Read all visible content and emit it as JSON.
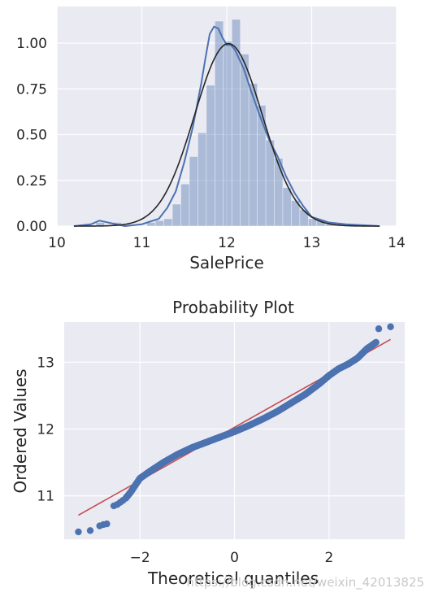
{
  "chart_data": [
    {
      "type": "histogram",
      "title": "",
      "xlabel": "SalePrice",
      "ylabel": "",
      "xlim": [
        10,
        14
      ],
      "ylim": [
        0,
        1.2
      ],
      "xticks": [
        "10",
        "11",
        "12",
        "13",
        "14"
      ],
      "yticks": [
        "0.00",
        "0.25",
        "0.50",
        "0.75",
        "1.00"
      ],
      "bin_edges": [
        10.46,
        10.56,
        10.66,
        10.76,
        10.86,
        10.96,
        11.06,
        11.16,
        11.26,
        11.36,
        11.46,
        11.56,
        11.66,
        11.76,
        11.86,
        11.96,
        12.06,
        12.16,
        12.26,
        12.36,
        12.46,
        12.56,
        12.66,
        12.76,
        12.86,
        12.96,
        13.06,
        13.16,
        13.26,
        13.36,
        13.46,
        13.56
      ],
      "bar_heights": [
        0.02,
        0.0,
        0.02,
        0.0,
        0.0,
        0.0,
        0.02,
        0.03,
        0.04,
        0.12,
        0.23,
        0.38,
        0.51,
        0.77,
        1.12,
        1.01,
        1.13,
        0.94,
        0.78,
        0.66,
        0.47,
        0.37,
        0.21,
        0.14,
        0.09,
        0.04,
        0.03,
        0.01,
        0.01,
        0.0,
        0.01
      ],
      "series": [
        {
          "name": "",
          "style": "kde",
          "color": "#4c72b0",
          "x": [
            10.2,
            10.4,
            10.5,
            10.6,
            10.8,
            11.0,
            11.2,
            11.3,
            11.4,
            11.5,
            11.6,
            11.7,
            11.75,
            11.8,
            11.85,
            11.9,
            11.95,
            12.0,
            12.05,
            12.1,
            12.2,
            12.3,
            12.4,
            12.5,
            12.6,
            12.7,
            12.8,
            12.9,
            13.0,
            13.2,
            13.4,
            13.6,
            13.8
          ],
          "y": [
            0.0,
            0.01,
            0.03,
            0.02,
            0.0,
            0.01,
            0.04,
            0.1,
            0.19,
            0.35,
            0.54,
            0.78,
            0.92,
            1.05,
            1.09,
            1.08,
            1.03,
            0.99,
            0.99,
            0.96,
            0.86,
            0.72,
            0.59,
            0.47,
            0.38,
            0.27,
            0.18,
            0.11,
            0.05,
            0.02,
            0.01,
            0.005,
            0.0
          ]
        },
        {
          "name": "",
          "style": "normal-fit",
          "color": "#262626",
          "mean": 12.02,
          "std": 0.4
        }
      ]
    },
    {
      "type": "scatter",
      "title": "Probability Plot",
      "xlabel": "Theoretical quantiles",
      "ylabel": "Ordered Values",
      "xlim": [
        -3.6,
        3.6
      ],
      "ylim": [
        10.35,
        13.6
      ],
      "xticks": [
        "−2",
        "0",
        "2"
      ],
      "yticks": [
        "11",
        "12",
        "13"
      ],
      "series": [
        {
          "name": "",
          "style": "points",
          "color": "#4c72b0",
          "curve_x": [
            -3.3,
            -3.05,
            -2.75,
            -2.6,
            -2.5,
            -2.35,
            -2.2,
            -2.0,
            -1.8,
            -1.5,
            -1.2,
            -0.9,
            -0.6,
            -0.3,
            0.0,
            0.3,
            0.6,
            0.9,
            1.2,
            1.5,
            1.8,
            2.0,
            2.2,
            2.4,
            2.6,
            2.8,
            3.0
          ],
          "curve_y": [
            10.46,
            10.48,
            10.56,
            10.6,
            10.86,
            10.92,
            11.05,
            11.26,
            11.36,
            11.5,
            11.62,
            11.72,
            11.8,
            11.88,
            11.96,
            12.05,
            12.15,
            12.26,
            12.39,
            12.52,
            12.68,
            12.8,
            12.9,
            12.97,
            13.06,
            13.2,
            13.3
          ],
          "outliers": [
            [
              3.05,
              13.5
            ],
            [
              3.3,
              13.53
            ]
          ]
        },
        {
          "name": "",
          "style": "fit-line",
          "color": "#c44e52",
          "x": [
            -3.3,
            3.3
          ],
          "y": [
            10.71,
            13.34
          ]
        }
      ]
    }
  ],
  "watermark": "https://blog.csdn.net/weixin_42013825"
}
